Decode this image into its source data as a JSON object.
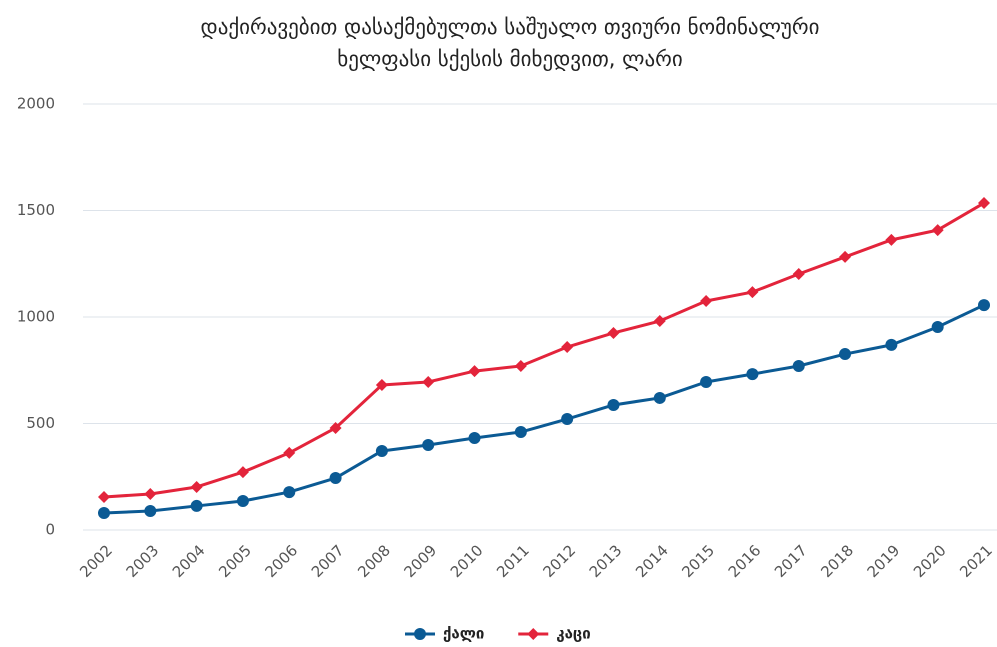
{
  "chart_data": {
    "type": "line",
    "title": [
      "დაქირავებით დასაქმებულთა საშუალო თვიური ნომინალური",
      "ხელფასი სქესის მიხედვით, ლარი"
    ],
    "categories": [
      "2002",
      "2003",
      "2004",
      "2005",
      "2006",
      "2007",
      "2008",
      "2009",
      "2010",
      "2011",
      "2012",
      "2013",
      "2014",
      "2015",
      "2016",
      "2017",
      "2018",
      "2019",
      "2020",
      "2021"
    ],
    "series": [
      {
        "name": "ქალი",
        "color": "#0b5a94",
        "marker": "circle",
        "values": [
          80,
          89,
          113,
          136,
          178,
          244,
          371,
          399,
          432,
          460,
          521,
          587,
          620,
          695,
          732,
          770,
          826,
          869,
          953,
          1056
        ]
      },
      {
        "name": "კაცი",
        "color": "#e3243b",
        "marker": "diamond",
        "values": [
          155,
          169,
          202,
          272,
          362,
          479,
          681,
          695,
          746,
          770,
          859,
          925,
          981,
          1075,
          1117,
          1202,
          1282,
          1362,
          1408,
          1535
        ]
      }
    ],
    "ylim": [
      0,
      2000
    ],
    "yticks": [
      0,
      500,
      1000,
      1500,
      2000
    ],
    "grid": true,
    "legend": "bottom"
  }
}
